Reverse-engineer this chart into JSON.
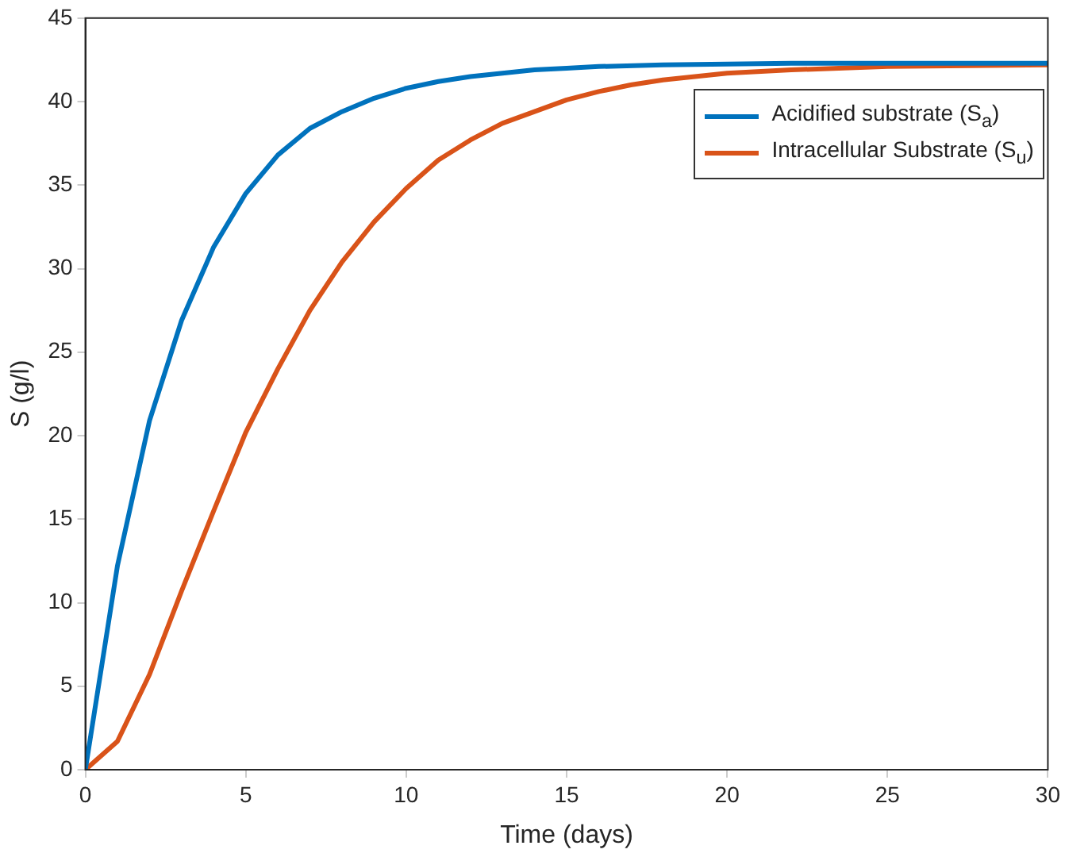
{
  "chart_data": {
    "type": "line",
    "xlabel": "Time (days)",
    "ylabel": "S (g/l)",
    "xlim": [
      0,
      30
    ],
    "xticks": [
      0,
      5,
      10,
      15,
      20,
      25,
      30
    ],
    "ylim": [
      0,
      45
    ],
    "yticks": [
      0,
      5,
      10,
      15,
      20,
      25,
      30,
      35,
      40,
      45
    ],
    "grid": false,
    "legend": "top right",
    "marker": "none",
    "line_style": "solid",
    "series": [
      {
        "name": "Acidified substrate (S$_{a}$)",
        "color": "#0072bd",
        "x": [
          0,
          1,
          2,
          3,
          4,
          5,
          6,
          7,
          8,
          9,
          10,
          11,
          12,
          13,
          14,
          15,
          16,
          18,
          20,
          22,
          25,
          30
        ],
        "values": [
          0,
          12.2,
          20.9,
          26.9,
          31.3,
          34.5,
          36.8,
          38.4,
          39.4,
          40.2,
          40.8,
          41.2,
          41.5,
          41.7,
          41.9,
          42.0,
          42.1,
          42.2,
          42.25,
          42.3,
          42.3,
          42.3
        ]
      },
      {
        "name": "Intracellular Substrate (S$_{u}$)",
        "color": "#d95319",
        "x": [
          0,
          1,
          2,
          3,
          4,
          5,
          6,
          7,
          8,
          9,
          10,
          11,
          12,
          13,
          14,
          15,
          16,
          17,
          18,
          19,
          20,
          22,
          25,
          30
        ],
        "values": [
          0,
          1.7,
          5.7,
          10.7,
          15.5,
          20.2,
          24,
          27.5,
          30.4,
          32.8,
          34.8,
          36.5,
          37.7,
          38.7,
          39.4,
          40.1,
          40.6,
          41.0,
          41.3,
          41.5,
          41.7,
          41.9,
          42.1,
          42.2
        ]
      }
    ]
  }
}
